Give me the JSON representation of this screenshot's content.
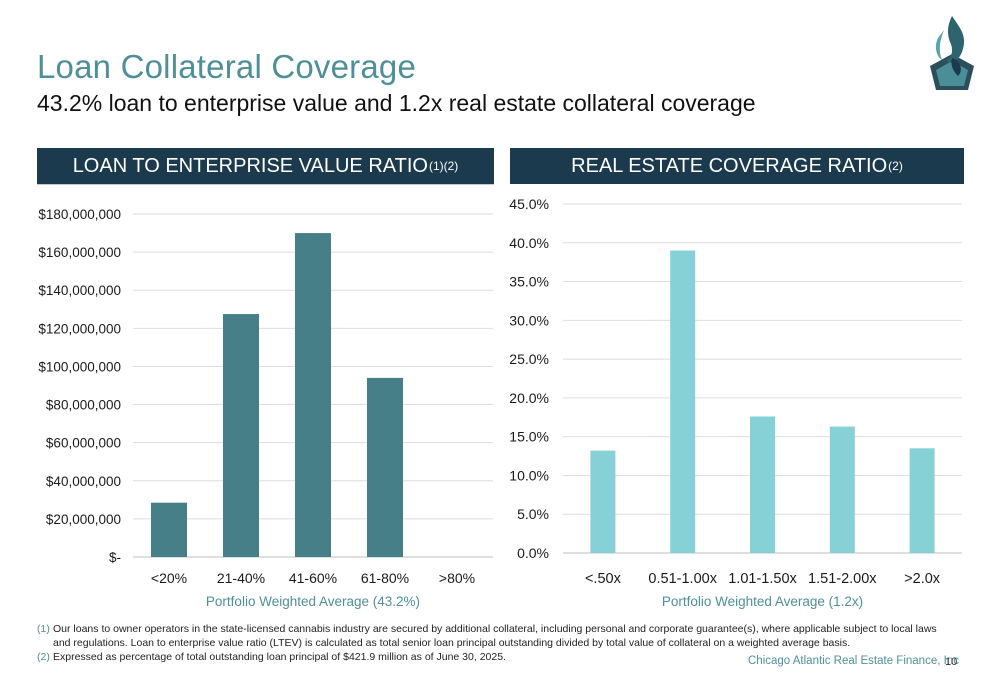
{
  "page": {
    "title": "Loan Collateral Coverage",
    "subtitle": "43.2% loan to enterprise value and 1.2x real estate collateral coverage",
    "company": "Chicago Atlantic Real Estate Finance, Inc",
    "page_number": "10"
  },
  "colors": {
    "title": "#4e8f98",
    "header_bg": "#1c3a4e",
    "bar_left": "#477f88",
    "bar_right": "#85d1d5"
  },
  "panels": {
    "left_header": "LOAN TO ENTERPRISE VALUE RATIO",
    "left_header_sup": "(1)(2)",
    "right_header": "REAL ESTATE COVERAGE RATIO",
    "right_header_sup": "(2)"
  },
  "chart_data": [
    {
      "type": "bar",
      "categories": [
        "<20%",
        "21-40%",
        "41-60%",
        "61-80%",
        ">80%"
      ],
      "values": [
        28500000,
        127500000,
        170000000,
        94000000,
        0
      ],
      "xlabel": "Portfolio Weighted Average (43.2%)",
      "ylabel": "",
      "ylim": [
        0,
        180000000
      ],
      "yticks": [
        0,
        20000000,
        40000000,
        60000000,
        80000000,
        100000000,
        120000000,
        140000000,
        160000000,
        180000000
      ],
      "ytick_labels": [
        "$-",
        "$20,000,000",
        "$40,000,000",
        "$60,000,000",
        "$80,000,000",
        "$100,000,000",
        "$120,000,000",
        "$140,000,000",
        "$160,000,000",
        "$180,000,000"
      ],
      "grid": true,
      "color": "#477f88"
    },
    {
      "type": "bar",
      "categories": [
        "<.50x",
        "0.51-1.00x",
        "1.01-1.50x",
        "1.51-2.00x",
        ">2.0x"
      ],
      "values": [
        13.2,
        39.0,
        17.6,
        16.3,
        13.5
      ],
      "xlabel": "Portfolio Weighted Average (1.2x)",
      "ylabel": "",
      "ylim": [
        0,
        45
      ],
      "yticks": [
        0,
        5,
        10,
        15,
        20,
        25,
        30,
        35,
        40,
        45
      ],
      "ytick_labels": [
        "0.0%",
        "5.0%",
        "10.0%",
        "15.0%",
        "20.0%",
        "25.0%",
        "30.0%",
        "35.0%",
        "40.0%",
        "45.0%"
      ],
      "grid": true,
      "color": "#85d1d5"
    }
  ],
  "footnotes": [
    {
      "num": "(1)",
      "text": "Our loans to owner operators in the state-licensed cannabis industry are secured by additional collateral, including personal and corporate guarantee(s), where applicable subject to local laws and regulations. Loan to enterprise value ratio (LTEV) is calculated as total senior loan principal outstanding divided by total value of collateral on a weighted average basis."
    },
    {
      "num": "(2)",
      "text": "Expressed as percentage of total outstanding loan principal of $421.9 million as of June 30, 2025."
    }
  ],
  "logo": {
    "icon": "flame-logo-icon"
  }
}
